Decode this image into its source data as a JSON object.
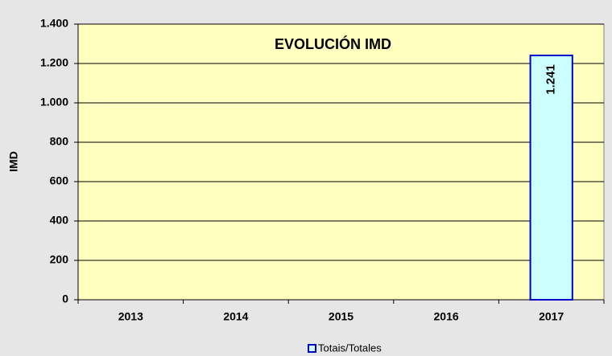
{
  "chart_data": {
    "type": "bar",
    "title": "EVOLUCIÓN IMD",
    "y_label": "IMD",
    "categories": [
      "2013",
      "2014",
      "2015",
      "2016",
      "2017"
    ],
    "series": [
      {
        "name": "Totais/Totales",
        "color": "#ccffff",
        "edge_color": "#0000cc",
        "values": [
          null,
          null,
          null,
          null,
          1241
        ],
        "value_labels": [
          null,
          null,
          null,
          null,
          "1.241"
        ]
      }
    ],
    "ylim": [
      0,
      1400
    ],
    "yticks": [
      0,
      200,
      400,
      600,
      800,
      {
        "value": 1000,
        "label": "1.000"
      },
      {
        "value": 1200,
        "label": "1.200"
      },
      {
        "value": 1400,
        "label": "1.400"
      }
    ],
    "grid": true,
    "legend": "bottom"
  }
}
